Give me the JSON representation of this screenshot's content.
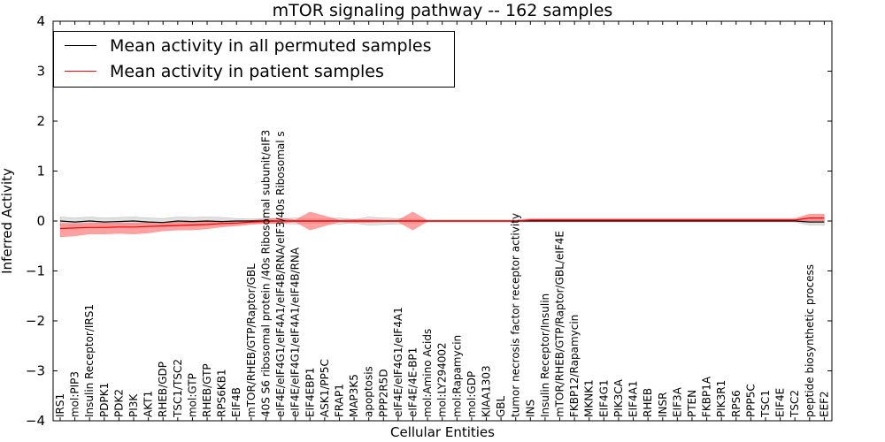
{
  "chart_data": {
    "type": "line",
    "title": "mTOR signaling pathway -- 162 samples",
    "xlabel": "Cellular Entities",
    "ylabel": "Inferred Activity",
    "ylim": [
      -4,
      4
    ],
    "yticks": [
      "−4",
      "−3",
      "−2",
      "−1",
      "0",
      "1",
      "2",
      "3",
      "4"
    ],
    "categories": [
      "IRS1",
      "mol:PIP3",
      "Insulin Receptor/IRS1",
      "PDPK1",
      "PDK2",
      "PI3K",
      "AKT1",
      "RHEB/GDP",
      "TSC1/TSC2",
      "mol:GTP",
      "RHEB/GTP",
      "RPS6KB1",
      "EIF4B",
      "mTOR/RHEB/GTP/Raptor/GBL",
      "40S S6 ribosomal protein /40s Ribosomal subunit/eIF3",
      "eIF4E/eIF4G1/eIF4A1/eIF4B/RNA/eIF3/40s Ribosomal s",
      "eIF4E/eIF4G1/eIF4A1/eIF4B/RNA",
      "EIF4EBP1",
      "ASK1/PP5C",
      "FRAP1",
      "MAP3K5",
      "apoptosis",
      "PPP2R5D",
      "eIF4E/eIF4G1/eIF4A1",
      "eIF4E/4E-BP1",
      "mol:Amino Acids",
      "mol:LY294002",
      "mol:Rapamycin",
      "mol:GDP",
      "KIAA1303",
      "GBL",
      "tumor necrosis factor receptor activity",
      "INS",
      "Insulin Receptor/Insulin",
      "mTOR/RHEB/GTP/Raptor/GBL/eIF4E",
      "FKBP12/Rapamycin",
      "MKNK1",
      "EIF4G1",
      "PIK3CA",
      "EIF4A1",
      "RHEB",
      "INSR",
      "EIF3A",
      "PTEN",
      "FKBP1A",
      "PIK3R1",
      "RPS6",
      "PPP5C",
      "TSC1",
      "EIF4E",
      "TSC2",
      "peptide biosynthetic process",
      "EEF2"
    ],
    "series": [
      {
        "name": "Mean activity in all permuted samples",
        "color": "#000000",
        "values": [
          0.0,
          -0.02,
          0.0,
          -0.02,
          -0.01,
          0.0,
          -0.02,
          -0.03,
          0.0,
          -0.01,
          0.0,
          -0.01,
          0.0,
          0.0,
          0.0,
          0.0,
          0.0,
          0.0,
          0.0,
          0.0,
          0.0,
          0.0,
          0.0,
          0.0,
          0.0,
          0.0,
          0.0,
          0.0,
          0.0,
          0.0,
          0.0,
          0.0,
          0.0,
          0.0,
          0.0,
          0.0,
          0.0,
          0.0,
          0.0,
          0.0,
          0.0,
          0.0,
          0.0,
          0.0,
          0.0,
          0.0,
          0.0,
          0.0,
          0.0,
          0.0,
          0.0,
          -0.02,
          -0.02
        ],
        "band_upper": [
          0.08,
          0.06,
          0.08,
          0.06,
          0.07,
          0.08,
          0.06,
          0.05,
          0.08,
          0.07,
          0.08,
          0.07,
          0.05,
          0.04,
          0.05,
          0.04,
          0.06,
          0.05,
          0.04,
          0.06,
          0.03,
          0.08,
          0.06,
          0.05,
          0.04,
          0.02,
          0.02,
          0.02,
          0.02,
          0.02,
          0.02,
          0.02,
          0.02,
          0.02,
          0.02,
          0.02,
          0.02,
          0.02,
          0.02,
          0.02,
          0.02,
          0.02,
          0.02,
          0.02,
          0.02,
          0.02,
          0.02,
          0.02,
          0.02,
          0.02,
          0.02,
          0.02,
          0.02
        ],
        "band_lower": [
          -0.1,
          -0.1,
          -0.09,
          -0.1,
          -0.09,
          -0.08,
          -0.1,
          -0.11,
          -0.09,
          -0.09,
          -0.08,
          -0.09,
          -0.06,
          -0.05,
          -0.05,
          -0.05,
          -0.06,
          -0.05,
          -0.05,
          -0.06,
          -0.04,
          -0.08,
          -0.07,
          -0.06,
          -0.05,
          -0.02,
          -0.02,
          -0.02,
          -0.02,
          -0.02,
          -0.02,
          -0.02,
          -0.02,
          -0.02,
          -0.02,
          -0.02,
          -0.02,
          -0.02,
          -0.02,
          -0.02,
          -0.02,
          -0.02,
          -0.02,
          -0.02,
          -0.02,
          -0.02,
          -0.02,
          -0.02,
          -0.02,
          -0.02,
          -0.02,
          -0.08,
          -0.08
        ],
        "band_color": "#c8c8c8"
      },
      {
        "name": "Mean activity in patient samples",
        "color": "#ff0000",
        "values": [
          -0.15,
          -0.14,
          -0.13,
          -0.13,
          -0.12,
          -0.12,
          -0.11,
          -0.1,
          -0.09,
          -0.08,
          -0.07,
          -0.05,
          -0.04,
          -0.02,
          -0.01,
          0.0,
          0.0,
          0.0,
          0.0,
          0.0,
          0.0,
          0.0,
          0.0,
          0.0,
          0.0,
          0.0,
          0.0,
          0.0,
          0.0,
          0.0,
          0.0,
          0.0,
          0.02,
          0.02,
          0.02,
          0.02,
          0.02,
          0.02,
          0.02,
          0.02,
          0.02,
          0.02,
          0.02,
          0.02,
          0.02,
          0.02,
          0.02,
          0.02,
          0.02,
          0.02,
          0.02,
          0.06,
          0.06
        ],
        "band_upper": [
          -0.05,
          -0.05,
          -0.04,
          -0.04,
          -0.04,
          -0.04,
          -0.03,
          -0.03,
          -0.02,
          -0.02,
          -0.01,
          0.0,
          0.0,
          0.01,
          0.04,
          0.06,
          0.02,
          0.18,
          0.1,
          0.02,
          0.03,
          0.03,
          0.02,
          0.02,
          0.18,
          0.01,
          0.01,
          0.01,
          0.01,
          0.01,
          0.01,
          0.01,
          0.05,
          0.05,
          0.05,
          0.05,
          0.05,
          0.05,
          0.05,
          0.05,
          0.05,
          0.05,
          0.05,
          0.05,
          0.05,
          0.05,
          0.05,
          0.05,
          0.05,
          0.05,
          0.05,
          0.14,
          0.14
        ],
        "band_lower": [
          -0.32,
          -0.3,
          -0.26,
          -0.26,
          -0.25,
          -0.26,
          -0.24,
          -0.2,
          -0.18,
          -0.18,
          -0.16,
          -0.12,
          -0.1,
          -0.07,
          -0.05,
          -0.05,
          -0.02,
          -0.18,
          -0.1,
          -0.02,
          -0.03,
          -0.03,
          -0.02,
          -0.02,
          -0.18,
          -0.01,
          -0.01,
          -0.01,
          -0.01,
          -0.01,
          -0.01,
          -0.01,
          0.0,
          0.0,
          0.0,
          0.0,
          0.0,
          0.0,
          0.0,
          0.0,
          0.0,
          0.0,
          0.0,
          0.0,
          0.0,
          0.0,
          0.0,
          0.0,
          0.0,
          0.0,
          0.0,
          0.0,
          0.0
        ],
        "band_color": "#ff6f6f"
      }
    ],
    "legend_position": "upper-left"
  }
}
